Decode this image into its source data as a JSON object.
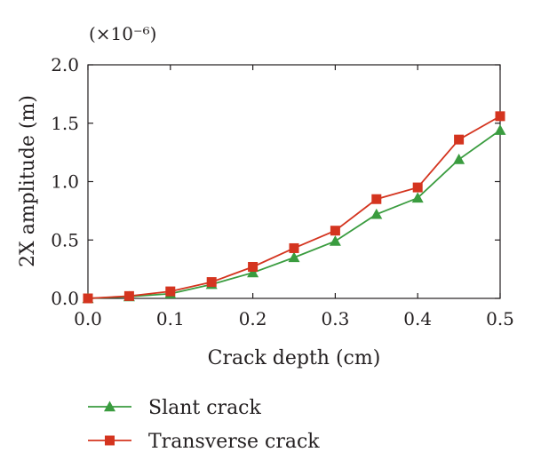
{
  "chart_data": {
    "type": "line",
    "multiplier": "(×10⁻⁶)",
    "xlabel": "Crack depth (cm)",
    "ylabel": "2X amplitude (m)",
    "xlim": [
      0.0,
      0.5
    ],
    "ylim": [
      0.0,
      2.0
    ],
    "x_ticks": [
      "0.0",
      "0.1",
      "0.2",
      "0.3",
      "0.4",
      "0.5"
    ],
    "y_ticks": [
      "0.0",
      "0.5",
      "1.0",
      "1.5",
      "2.0"
    ],
    "grid": false,
    "legend_placement": "bottom",
    "x": [
      0.0,
      0.05,
      0.1,
      0.15,
      0.2,
      0.25,
      0.3,
      0.35,
      0.4,
      0.45,
      0.5
    ],
    "series": [
      {
        "name": "Slant crack",
        "marker": "triangle",
        "color": "#3a9c3f",
        "values": [
          0.0,
          0.015,
          0.04,
          0.12,
          0.22,
          0.35,
          0.49,
          0.72,
          0.86,
          1.19,
          1.44
        ]
      },
      {
        "name": "Transverse crack",
        "marker": "square",
        "color": "#d4341f",
        "values": [
          0.0,
          0.02,
          0.06,
          0.14,
          0.27,
          0.43,
          0.58,
          0.85,
          0.95,
          1.36,
          1.56
        ]
      }
    ]
  }
}
